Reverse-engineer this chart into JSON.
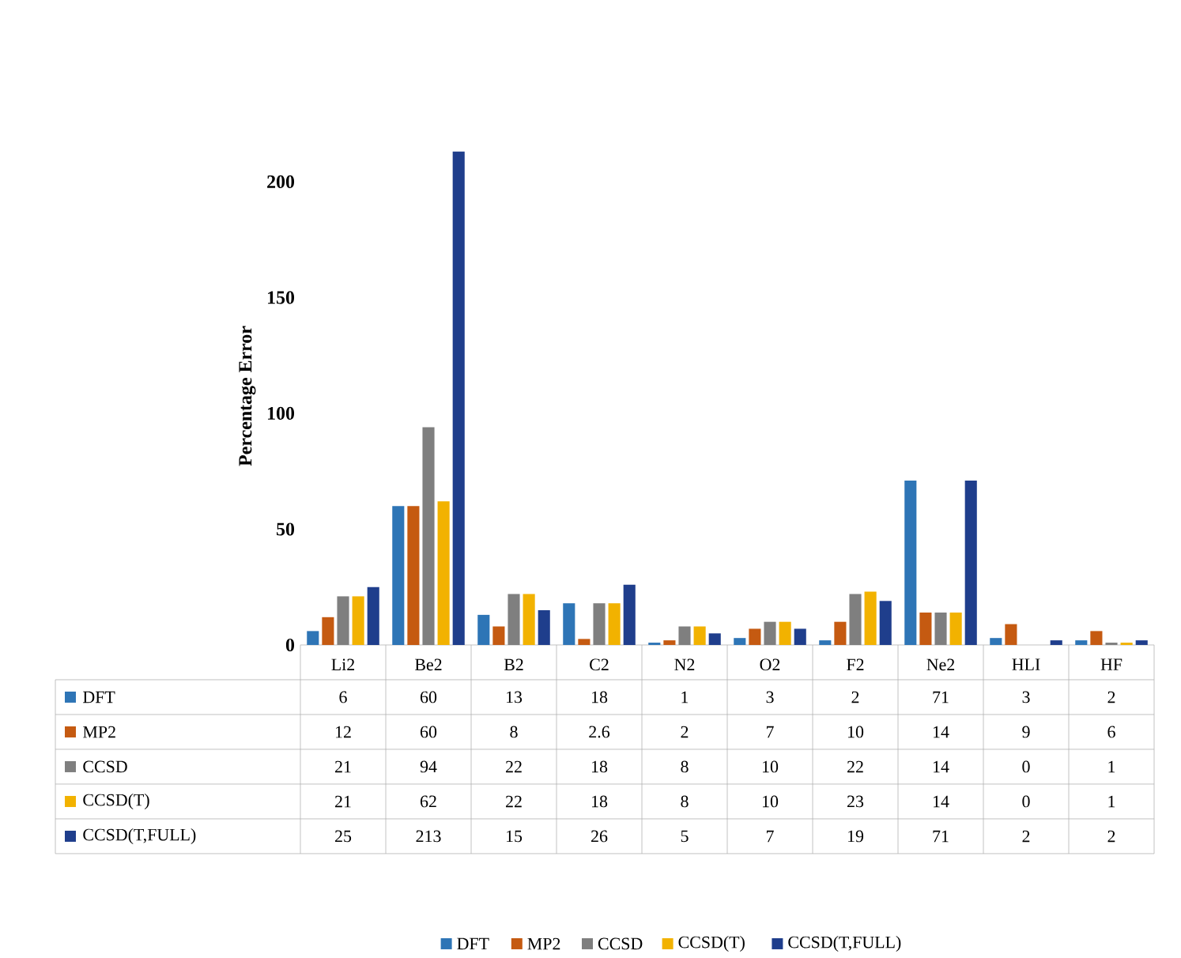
{
  "chart_data": {
    "type": "bar",
    "ylabel": "Percentage Error",
    "categories": [
      "Li2",
      "Be2",
      "B2",
      "C2",
      "N2",
      "O2",
      "F2",
      "Ne2",
      "HLI",
      "HF"
    ],
    "series": [
      {
        "name": "DFT",
        "color": "#2e75b6",
        "values": [
          6,
          60,
          13,
          18,
          1,
          3,
          2,
          71,
          3,
          2
        ]
      },
      {
        "name": "MP2",
        "color": "#c55a11",
        "values": [
          12,
          60,
          8,
          2.6,
          2,
          7,
          10,
          14,
          9,
          6
        ]
      },
      {
        "name": "CCSD",
        "color": "#7f7f7f",
        "values": [
          21,
          94,
          22,
          18,
          8,
          10,
          22,
          14,
          0,
          1
        ]
      },
      {
        "name": "CCSD(T)",
        "color": "#f2b200",
        "values": [
          21,
          62,
          22,
          18,
          8,
          10,
          23,
          14,
          0,
          1
        ]
      },
      {
        "name": "CCSD(T,FULL)",
        "color": "#1f3e8c",
        "values": [
          25,
          213,
          15,
          26,
          5,
          7,
          19,
          71,
          2,
          2
        ]
      }
    ],
    "ylim": [
      0,
      215
    ],
    "yticks": [
      0,
      50,
      100,
      150,
      200
    ],
    "data_labels": true,
    "legend": "bottom",
    "grid": false
  }
}
